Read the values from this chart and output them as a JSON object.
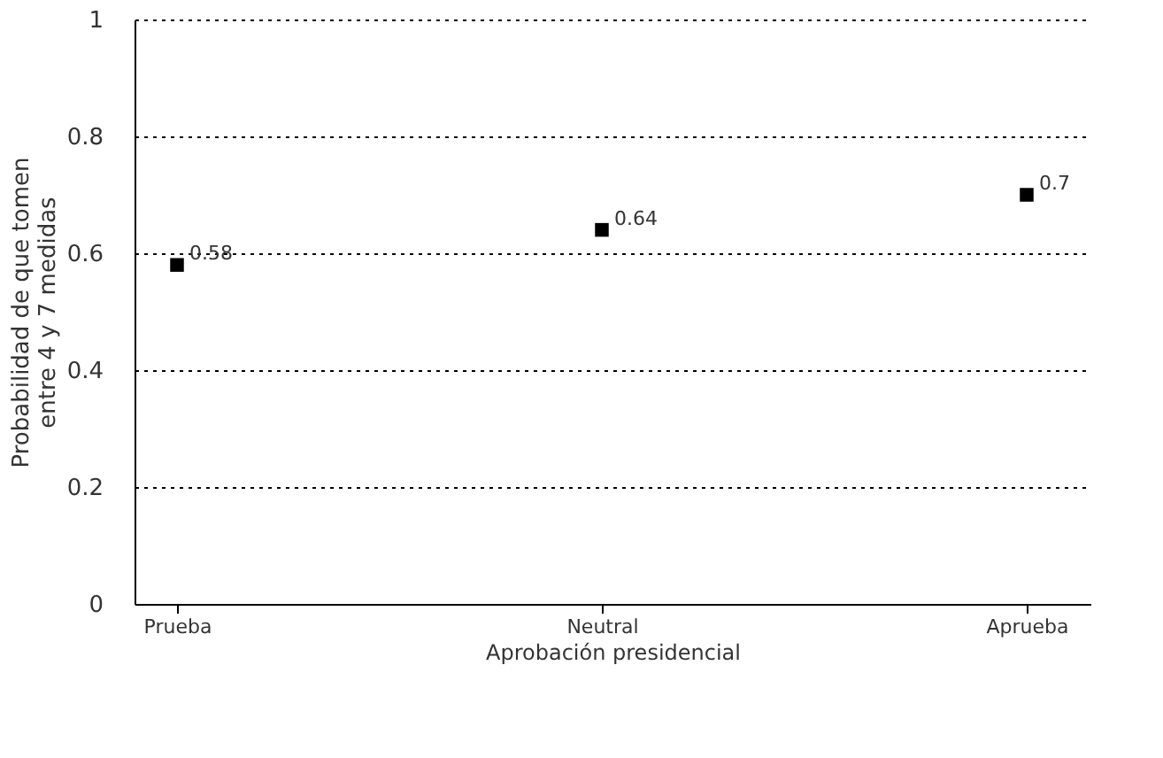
{
  "chart_data": {
    "type": "scatter",
    "xlabel": "Aprobación presidencial",
    "ylabel": "Probabilidad de que tomen\nentre 4 y 7 medidas",
    "categories": [
      "Prueba",
      "Neutral",
      "Aprueba"
    ],
    "series": [
      {
        "color": "#000000",
        "values": [
          0.58,
          0.64,
          0.7
        ]
      }
    ],
    "ylim": [
      0,
      1
    ],
    "yticks": [
      0,
      0.2,
      0.4,
      0.6,
      0.8,
      1
    ],
    "grid": "y",
    "marker": "square",
    "data_labels": true
  }
}
